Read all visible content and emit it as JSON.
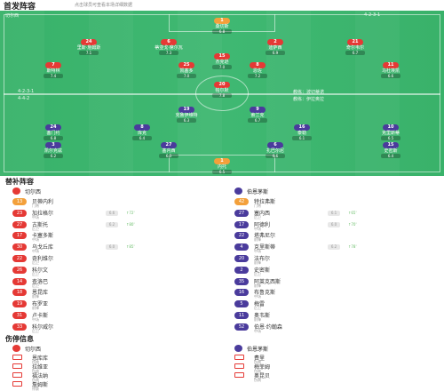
{
  "header": {
    "title": "首发阵容",
    "subtitle": "点击球员可查看本场详细数据"
  },
  "pitch": {
    "home_formation": "4-2-3-1",
    "away_formation": "4-4-2",
    "home_team_label": "切尔西",
    "away_team_label": "伯恩茅斯",
    "coach_home": "教练：波切蒂诺",
    "coach_away": "教练：伊拉奥拉",
    "left_note_top": "4-2-3-1",
    "left_note_bottom": "4-4-2",
    "home_players": [
      {
        "num": "1",
        "name": "桑切斯",
        "rating": "6.8",
        "gk": true
      },
      {
        "num": "24",
        "name": "里斯·詹姆斯",
        "rating": "7.1"
      },
      {
        "num": "6",
        "name": "蒂亚戈·席尔瓦",
        "rating": "7.3"
      },
      {
        "num": "2",
        "name": "迪萨西",
        "rating": "6.9"
      },
      {
        "num": "21",
        "name": "奇尔韦尔",
        "rating": "6.7"
      },
      {
        "num": "25",
        "name": "凯塞多",
        "rating": "7.0"
      },
      {
        "num": "8",
        "name": "恩佐",
        "rating": "7.2"
      },
      {
        "num": "7",
        "name": "斯特林",
        "rating": "7.4"
      },
      {
        "num": "20",
        "name": "帕尔默",
        "rating": "7.8"
      },
      {
        "num": "11",
        "name": "马杜埃凯",
        "rating": "6.6"
      },
      {
        "num": "15",
        "name": "杰克逊",
        "rating": "7.0"
      }
    ],
    "away_players": [
      {
        "num": "1",
        "name": "内托",
        "rating": "6.5",
        "gk": true
      },
      {
        "num": "15",
        "name": "史密斯",
        "rating": "6.4"
      },
      {
        "num": "6",
        "name": "扎巴尔尼",
        "rating": "6.6"
      },
      {
        "num": "27",
        "name": "塞内西",
        "rating": "6.3"
      },
      {
        "num": "3",
        "name": "凯尔克兹",
        "rating": "6.2"
      },
      {
        "num": "16",
        "name": "泰勒",
        "rating": "6.1"
      },
      {
        "num": "8",
        "name": "库克",
        "rating": "6.4"
      },
      {
        "num": "10",
        "name": "克里斯蒂",
        "rating": "6.5"
      },
      {
        "num": "24",
        "name": "塞门约",
        "rating": "6.8"
      },
      {
        "num": "9",
        "name": "索兰克",
        "rating": "6.7"
      },
      {
        "num": "19",
        "name": "克鲁伊维特",
        "rating": "6.3"
      }
    ]
  },
  "subs": {
    "title": "替补阵容",
    "home_team": "切尔西",
    "away_team": "伯恩茅斯",
    "home": [
      {
        "num": "13",
        "name": "贝蒂内利",
        "pos": "门将",
        "gk": true
      },
      {
        "num": "23",
        "name": "加拉格尔",
        "pos": "中场",
        "sub": "72'",
        "rating": "6.6"
      },
      {
        "num": "27",
        "name": "古斯托",
        "pos": "后卫",
        "sub": "80'",
        "rating": "6.2"
      },
      {
        "num": "17",
        "name": "卡塞多斯",
        "pos": "中场"
      },
      {
        "num": "30",
        "name": "乌戈丘库",
        "pos": "中场",
        "sub": "85'",
        "rating": "6.0"
      },
      {
        "num": "22",
        "name": "奇利维尔",
        "pos": "后卫"
      },
      {
        "num": "26",
        "name": "科尔文",
        "pos": "后卫"
      },
      {
        "num": "14",
        "name": "查洛巴",
        "pos": "后卫"
      },
      {
        "num": "18",
        "name": "恩昆库",
        "pos": "前锋"
      },
      {
        "num": "19",
        "name": "布罗亚",
        "pos": "前锋"
      },
      {
        "num": "31",
        "name": "卢卡斯",
        "pos": "中场"
      },
      {
        "num": "33",
        "name": "科尔威尔",
        "pos": "后卫"
      }
    ],
    "away": [
      {
        "num": "42",
        "name": "特拉弗斯",
        "pos": "门将",
        "gk": true
      },
      {
        "num": "27",
        "name": "塞内西",
        "pos": "后卫",
        "sub": "65'",
        "rating": "6.1"
      },
      {
        "num": "17",
        "name": "阿德利",
        "pos": "中场",
        "sub": "70'",
        "rating": "6.0"
      },
      {
        "num": "22",
        "name": "塔弗尼尔",
        "pos": "前锋"
      },
      {
        "num": "4",
        "name": "克里斯蒂",
        "pos": "中场",
        "sub": "78'",
        "rating": "6.2"
      },
      {
        "num": "20",
        "name": "法布尔",
        "pos": "前锋"
      },
      {
        "num": "2",
        "name": "史密斯",
        "pos": "后卫"
      },
      {
        "num": "35",
        "name": "阿莱克西斯",
        "pos": "前锋"
      },
      {
        "num": "16",
        "name": "布鲁克斯",
        "pos": "中场"
      },
      {
        "num": "5",
        "name": "梅雷",
        "pos": "后卫"
      },
      {
        "num": "11",
        "name": "奥韦斯",
        "pos": "前锋"
      },
      {
        "num": "52",
        "name": "伯恩·约翰森",
        "pos": "中场"
      }
    ]
  },
  "injuries": {
    "title": "伤停信息",
    "home_team": "切尔西",
    "away_team": "伯恩茅斯",
    "home": [
      {
        "name": "恩库库",
        "pos": "伤病"
      },
      {
        "name": "拉维亚",
        "pos": "伤病"
      },
      {
        "name": "福法纳",
        "pos": "伤病"
      },
      {
        "name": "詹姆斯",
        "pos": "停赛"
      }
    ],
    "away": [
      {
        "name": "费里",
        "pos": "伤病"
      },
      {
        "name": "梅菲姆",
        "pos": "伤病"
      },
      {
        "name": "奥昆贝",
        "pos": "伤病"
      }
    ]
  },
  "colors": {
    "home": "#e53935",
    "away": "#4a3b9c",
    "pitch": "#3fb872",
    "keeper": "#f3a03b"
  }
}
